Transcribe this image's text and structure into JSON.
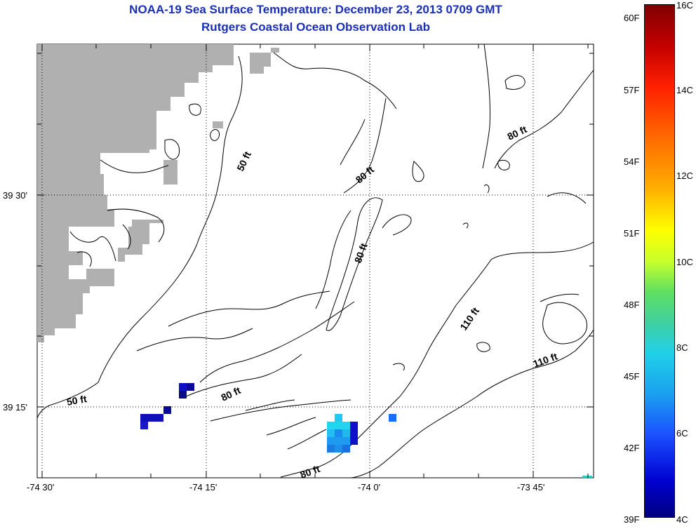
{
  "header": {
    "title": "NOAA-19 Sea Surface Temperature:  December 23, 2013 0709 GMT",
    "subtitle": "Rutgers Coastal Ocean Observation Lab"
  },
  "map": {
    "lon_ticks": [
      "-74 30'",
      "-74 15'",
      "-74 0'",
      "-73 45'"
    ],
    "lat_ticks": [
      "39 30'",
      "39 15'"
    ],
    "contour_labels": [
      "50 ft",
      "80 ft",
      "80 ft",
      "80 ft",
      "80 ft",
      "80 ft",
      "110 ft",
      "110 ft",
      "50 ft"
    ],
    "land_color": "#b0b0b0"
  },
  "colorbar": {
    "fahrenheit": [
      "60F",
      "57F",
      "54F",
      "51F",
      "48F",
      "45F",
      "42F",
      "39F"
    ],
    "celsius": [
      "16C",
      "14C",
      "12C",
      "10C",
      "8C",
      "6C",
      "4C"
    ]
  }
}
